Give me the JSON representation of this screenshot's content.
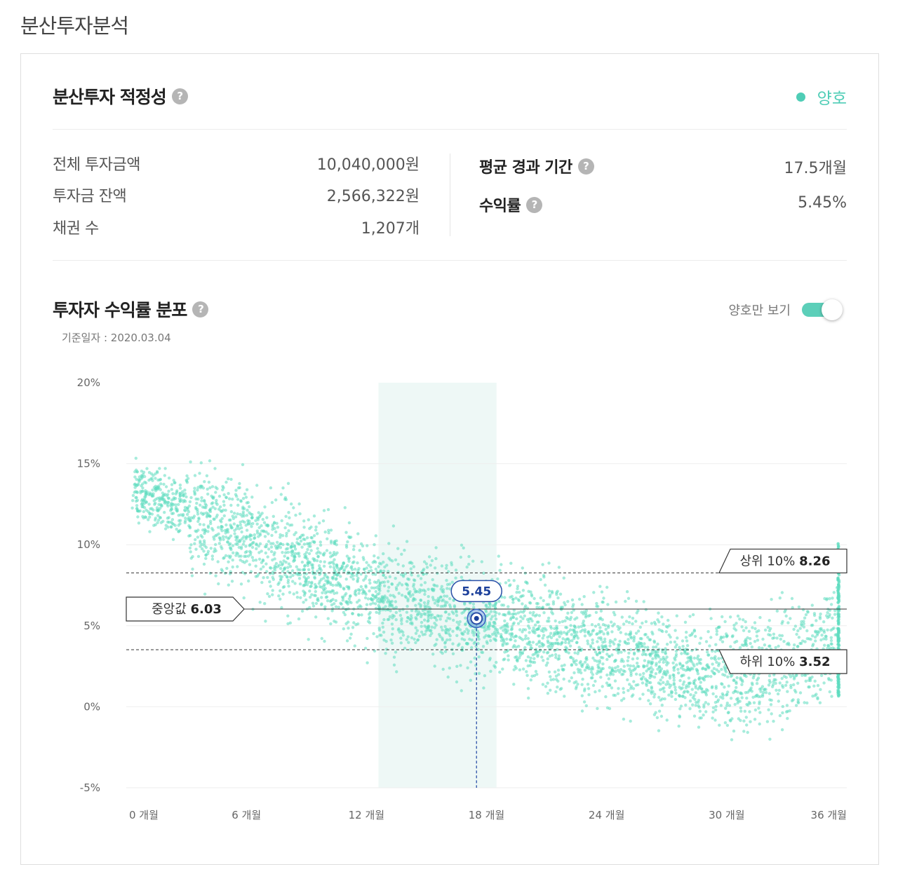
{
  "page_title": "분산투자분석",
  "adequacy": {
    "title": "분산투자 적정성",
    "status_label": "양호",
    "status_color": "#4fcdb6"
  },
  "stats_left": [
    {
      "label": "전체 투자금액",
      "value": "10,040,000원"
    },
    {
      "label": "투자금 잔액",
      "value": "2,566,322원"
    },
    {
      "label": "채권 수",
      "value": "1,207개"
    }
  ],
  "stats_right": [
    {
      "label": "평균 경과 기간",
      "value": "17.5개월"
    },
    {
      "label": "수익률",
      "value": "5.45%"
    }
  ],
  "help_icon": "question-circle-icon",
  "distribution": {
    "title": "투자자 수익률 분포",
    "base_date": "기준일자 : 2020.03.04",
    "toggle_label": "양호만 보기",
    "toggle_on": true
  },
  "chart_data": {
    "type": "scatter",
    "point_color": "#5fdcc0",
    "xlim": [
      0,
      36
    ],
    "ylim": [
      -5,
      20
    ],
    "x_ticks": [
      {
        "value": 0,
        "label": "0 개월"
      },
      {
        "value": 6,
        "label": "6 개월"
      },
      {
        "value": 12,
        "label": "12 개월"
      },
      {
        "value": 18,
        "label": "18 개월"
      },
      {
        "value": 24,
        "label": "24 개월"
      },
      {
        "value": 30,
        "label": "30 개월"
      },
      {
        "value": 36,
        "label": "36 개월"
      }
    ],
    "y_ticks": [
      {
        "value": 20,
        "label": "20%"
      },
      {
        "value": 15,
        "label": "15%"
      },
      {
        "value": 10,
        "label": "10%"
      },
      {
        "value": 5,
        "label": "5%"
      },
      {
        "value": 0,
        "label": "0%"
      },
      {
        "value": -5,
        "label": "-5%"
      }
    ],
    "highlight_band": [
      12.6,
      18.5
    ],
    "median": {
      "label": "중앙값",
      "value": 6.03,
      "display": "6.03"
    },
    "top10": {
      "label": "상위 10%",
      "value": 8.26,
      "display": "8.26"
    },
    "bottom10": {
      "label": "하위 10%",
      "value": 3.52,
      "display": "3.52"
    },
    "my_point": {
      "x": 17.5,
      "y": 5.45,
      "label": "5.45"
    },
    "trend": [
      {
        "x": 0,
        "y": 13.5
      },
      {
        "x": 6,
        "y": 10.5
      },
      {
        "x": 12,
        "y": 7.2
      },
      {
        "x": 18,
        "y": 5.2
      },
      {
        "x": 24,
        "y": 3.6
      },
      {
        "x": 28,
        "y": 2.2
      },
      {
        "x": 31,
        "y": 2.0
      },
      {
        "x": 36,
        "y": 4.2
      }
    ]
  }
}
